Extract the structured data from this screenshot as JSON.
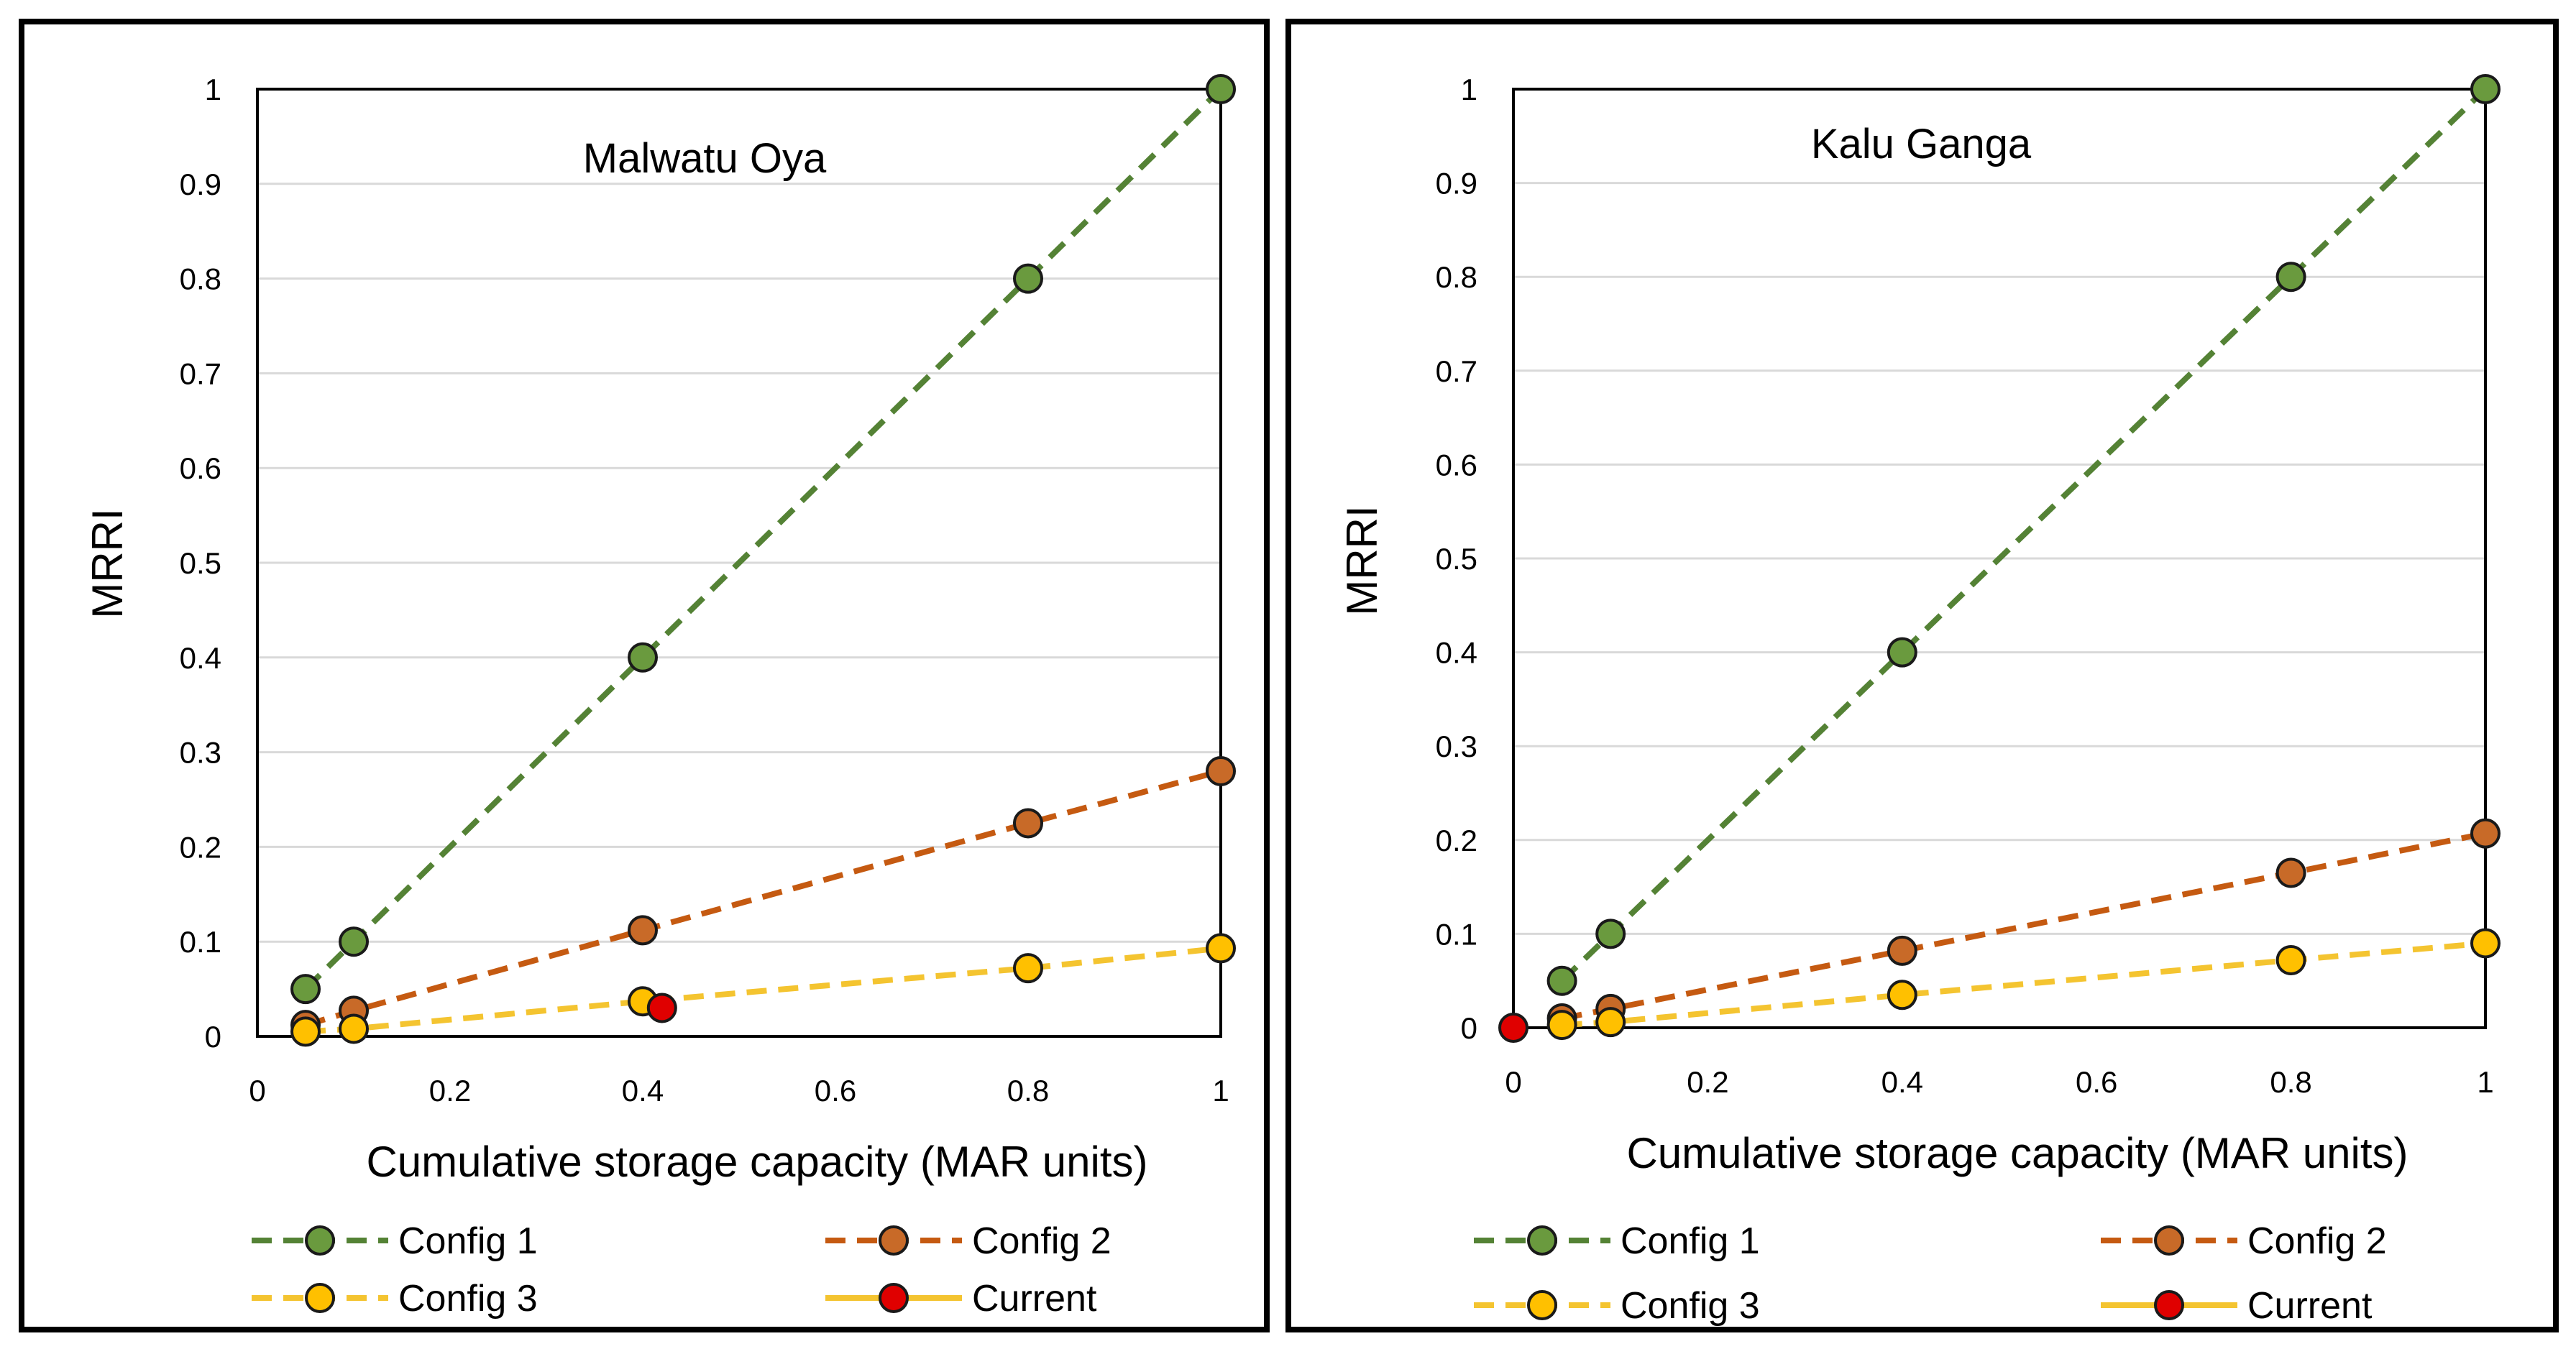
{
  "colors": {
    "config1": "#548235",
    "config1_marker": "#6a9a3e",
    "config2": "#c55a11",
    "config2_marker": "#c86a28",
    "config3": "#f4c430",
    "config3_marker": "#ffc000",
    "current": "#e00000",
    "grid": "#d9d9d9",
    "frame": "#000000"
  },
  "chart_data": [
    {
      "type": "line",
      "title": "Malwatu Oya",
      "xlabel": "Cumulative storage capacity  (MAR units)",
      "ylabel": "MRRI",
      "xlim": [
        0,
        1
      ],
      "ylim": [
        0,
        1
      ],
      "x_ticks": [
        "0",
        "0.2",
        "0.4",
        "0.6",
        "0.8",
        "1"
      ],
      "y_ticks": [
        "0",
        "0.1",
        "0.2",
        "0.3",
        "0.4",
        "0.5",
        "0.6",
        "0.7",
        "0.8",
        "0.9",
        "1"
      ],
      "grid": "horizontal",
      "series": [
        {
          "name": "Config 1",
          "style": "dashed",
          "color_key": "config1",
          "x": [
            0.05,
            0.1,
            0.4,
            0.8,
            1.0
          ],
          "y": [
            0.05,
            0.1,
            0.4,
            0.8,
            1.0
          ]
        },
        {
          "name": "Config 2",
          "style": "dashed",
          "color_key": "config2",
          "x": [
            0.05,
            0.1,
            0.4,
            0.8,
            1.0
          ],
          "y": [
            0.012,
            0.027,
            0.112,
            0.225,
            0.28
          ]
        },
        {
          "name": "Config 3",
          "style": "dashed",
          "color_key": "config3",
          "x": [
            0.05,
            0.1,
            0.4,
            0.8,
            1.0
          ],
          "y": [
            0.005,
            0.008,
            0.037,
            0.072,
            0.093
          ]
        },
        {
          "name": "Current",
          "style": "solid",
          "color_key": "current",
          "x": [
            0.42
          ],
          "y": [
            0.03
          ]
        }
      ],
      "legend": {
        "position": "bottom",
        "entries": [
          "Config 1",
          "Config 2",
          "Config 3",
          "Current"
        ]
      }
    },
    {
      "type": "line",
      "title": "Kalu Ganga",
      "xlabel": "Cumulative storage capacity  (MAR units)",
      "ylabel": "MRRI",
      "xlim": [
        0,
        1
      ],
      "ylim": [
        0,
        1
      ],
      "x_ticks": [
        "0",
        "0.2",
        "0.4",
        "0.6",
        "0.8",
        "1"
      ],
      "y_ticks": [
        "0",
        "0.1",
        "0.2",
        "0.3",
        "0.4",
        "0.5",
        "0.6",
        "0.7",
        "0.8",
        "0.9",
        "1"
      ],
      "grid": "horizontal",
      "series": [
        {
          "name": "Config 1",
          "style": "dashed",
          "color_key": "config1",
          "x": [
            0.05,
            0.1,
            0.4,
            0.8,
            1.0
          ],
          "y": [
            0.05,
            0.1,
            0.4,
            0.8,
            1.0
          ]
        },
        {
          "name": "Config 2",
          "style": "dashed",
          "color_key": "config2",
          "x": [
            0.05,
            0.1,
            0.4,
            0.8,
            1.0
          ],
          "y": [
            0.01,
            0.02,
            0.082,
            0.165,
            0.207
          ]
        },
        {
          "name": "Config 3",
          "style": "dashed",
          "color_key": "config3",
          "x": [
            0.05,
            0.1,
            0.4,
            0.8,
            1.0
          ],
          "y": [
            0.003,
            0.006,
            0.035,
            0.072,
            0.09
          ]
        },
        {
          "name": "Current",
          "style": "solid",
          "color_key": "current",
          "x": [
            0.0
          ],
          "y": [
            0.0
          ]
        }
      ],
      "legend": {
        "position": "bottom",
        "entries": [
          "Config 1",
          "Config 2",
          "Config 3",
          "Current"
        ]
      }
    }
  ]
}
